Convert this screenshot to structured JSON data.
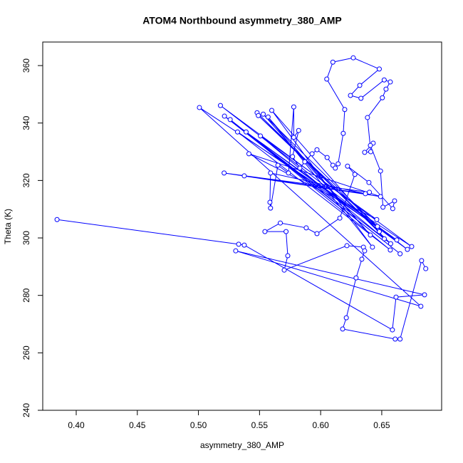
{
  "chart_data": {
    "type": "line",
    "markers": true,
    "title": "ATOM4 Northbound asymmetry_380_AMP",
    "x_label": "asymmetry_380_AMP",
    "y_label": "Theta (K)",
    "color": "#0000ff",
    "xlim": [
      0.3726,
      0.699
    ],
    "ylim": [
      240,
      368.2
    ],
    "xticks": [
      {
        "value": 0.4,
        "label": "0.40"
      },
      0.45,
      {
        "value": 0.5,
        "label": "0.50"
      },
      0.55,
      {
        "value": 0.6,
        "label": "0.60"
      },
      0.65
    ],
    "yticks": [
      240,
      260,
      280,
      300,
      320,
      340,
      360
    ],
    "x": [
      0.3843,
      0.5329,
      0.5375,
      0.6587,
      0.6617,
      0.685,
      0.5305,
      0.682,
      0.5008,
      0.6745,
      0.518,
      0.671,
      0.5213,
      0.665,
      0.526,
      0.657,
      0.532,
      0.6623,
      0.539,
      0.6573,
      0.548,
      0.648,
      0.549,
      0.6465,
      0.553,
      0.6407,
      0.557,
      0.6424,
      0.56,
      0.6521,
      0.5507,
      0.6459,
      0.5413,
      0.649,
      0.521,
      0.6399,
      0.5375,
      0.6366,
      0.559,
      0.5585,
      0.559,
      0.565,
      0.5737,
      0.578,
      0.578,
      0.582,
      0.577,
      0.583,
      0.587,
      0.593,
      0.597,
      0.6053,
      0.61,
      0.612,
      0.6143,
      0.6185,
      0.6197,
      0.605,
      0.61,
      0.6267,
      0.648,
      0.632,
      0.6244,
      0.633,
      0.652,
      0.657,
      0.6535,
      0.6505,
      0.6383,
      0.641,
      0.636,
      0.643,
      0.6407,
      0.649,
      0.651,
      0.6605,
      0.659,
      0.6395,
      0.622,
      0.628,
      0.6157,
      0.597,
      0.5882,
      0.567,
      0.5544,
      0.5717,
      0.5731,
      0.5702,
      0.6215,
      0.635,
      0.636,
      0.6337,
      0.629,
      0.621,
      0.618,
      0.661,
      0.665,
      0.6826,
      0.686
    ],
    "values": [
      306.4,
      297.8,
      297.5,
      268.0,
      279.4,
      280.2,
      295.5,
      276.2,
      345.4,
      297.0,
      346.1,
      296.0,
      342.4,
      294.5,
      341.2,
      295.8,
      336.9,
      299.3,
      336.9,
      298.0,
      343.6,
      302.2,
      342.6,
      304.0,
      343.1,
      301.0,
      342.1,
      296.8,
      344.4,
      299.7,
      335.5,
      306.4,
      329.3,
      314.4,
      322.6,
      315.9,
      321.6,
      315.4,
      322.6,
      312.4,
      310.4,
      325.3,
      322.6,
      345.6,
      335.0,
      337.4,
      328.3,
      324.3,
      326.5,
      329.3,
      330.7,
      328.0,
      325.3,
      324.3,
      325.8,
      336.4,
      344.7,
      355.3,
      361.2,
      362.7,
      358.8,
      353.1,
      349.6,
      348.6,
      355.0,
      354.3,
      351.8,
      348.8,
      341.9,
      330.0,
      329.8,
      333.0,
      332.2,
      323.3,
      310.7,
      312.9,
      310.2,
      319.3,
      325.0,
      322.1,
      306.9,
      301.5,
      303.5,
      305.2,
      302.2,
      302.2,
      293.8,
      288.8,
      297.3,
      296.8,
      295.5,
      292.6,
      286.1,
      272.2,
      268.3,
      264.8,
      264.8,
      292.1,
      289.3
    ]
  }
}
